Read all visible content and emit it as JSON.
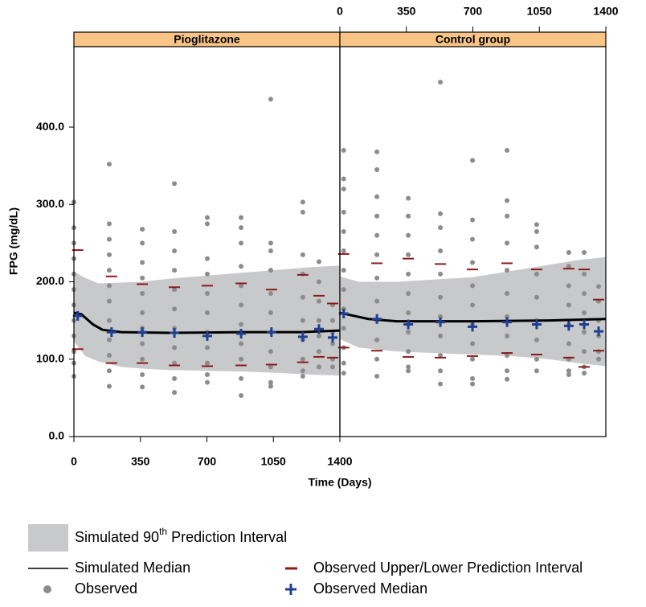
{
  "chart_data": [
    {
      "type": "scatter",
      "title": "Pioglitazone",
      "x_label": "Time (Days)",
      "y_label": "FPG (mg/dL)",
      "xlim": [
        0,
        1400
      ],
      "xticks": [
        0,
        350,
        700,
        1050,
        1400
      ],
      "xtick_side": "bottom",
      "ylim": [
        0,
        504
      ],
      "yticks": [
        {
          "value": 0,
          "label": "0.0"
        },
        {
          "value": 100,
          "label": "100.0"
        },
        {
          "value": 200,
          "label": "200.0"
        },
        {
          "value": 300,
          "label": "300.0"
        },
        {
          "value": 400,
          "label": "400.0"
        }
      ],
      "series": [
        {
          "name": "Simulated 90th Prediction Interval",
          "color": "#c8c9cb",
          "x": [
            0,
            60,
            130,
            250,
            350,
            500,
            700,
            900,
            1100,
            1250,
            1400
          ],
          "upper": [
            213,
            205,
            198,
            199,
            200,
            204,
            208,
            212,
            216,
            219,
            221
          ],
          "lower": [
            123,
            104,
            97,
            90,
            88,
            86,
            85,
            84,
            82,
            80,
            79
          ]
        },
        {
          "name": "Simulated Median",
          "color": "#000000",
          "x": [
            0,
            40,
            100,
            150,
            250,
            500,
            900,
            1200,
            1400
          ],
          "values": [
            160,
            158,
            145,
            138,
            135,
            134,
            135,
            135,
            137
          ]
        },
        {
          "name": "Observed",
          "color": "#8c8c8c",
          "x": [
            0,
            186,
            360,
            529,
            702,
            880,
            1036,
            1205,
            1290,
            1362
          ],
          "values": [
            [
              303,
              270,
              250,
              230,
              210,
              190,
              170,
              150,
              130,
              110,
              95,
              78
            ],
            [
              352,
              275,
              255,
              235,
              215,
              195,
              175,
              150,
              125,
              105,
              85,
              65
            ],
            [
              268,
              250,
              225,
              205,
              185,
              160,
              140,
              120,
              100,
              80,
              64
            ],
            [
              327,
              265,
              240,
              215,
              190,
              165,
              140,
              115,
              95,
              75,
              57
            ],
            [
              283,
              275,
              230,
              210,
              185,
              160,
              135,
              115,
              95,
              80,
              70
            ],
            [
              283,
              270,
              250,
              220,
              195,
              170,
              145,
              120,
              100,
              75,
              53
            ],
            [
              436,
              250,
              240,
              215,
              185,
              160,
              135,
              110,
              90,
              70,
              65
            ],
            [
              303,
              290,
              235,
              210,
              180,
              150,
              125,
              100,
              85,
              78
            ],
            [
              226,
              200,
              175,
              150,
              130,
              110,
              90
            ],
            [
              170,
              150,
              135,
              120,
              100,
              90
            ]
          ]
        },
        {
          "name": "Observed Upper/Lower Prediction Interval",
          "color": "#8b1a1a",
          "x": [
            20,
            198,
            360,
            529,
            702,
            880,
            1040,
            1205,
            1290,
            1362
          ],
          "upper": [
            241,
            207,
            197,
            193,
            195,
            198,
            190,
            209,
            182,
            172
          ],
          "lower": [
            113,
            95,
            95,
            92,
            91,
            92,
            93,
            96,
            103,
            102
          ]
        },
        {
          "name": "Observed Median",
          "color": "#1f3f8f",
          "x": [
            20,
            198,
            360,
            529,
            702,
            880,
            1040,
            1205,
            1290,
            1362
          ],
          "values": [
            156,
            135,
            135,
            134,
            130,
            133,
            135,
            129,
            139,
            128
          ]
        }
      ]
    },
    {
      "type": "scatter",
      "title": "Control group",
      "xlim": [
        0,
        1400
      ],
      "xticks": [
        0,
        350,
        700,
        1050,
        1400
      ],
      "xtick_side": "top",
      "ylim": [
        0,
        504
      ],
      "series": [
        {
          "color": "#c8c9cb",
          "x": [
            0,
            100,
            300,
            500,
            700,
            900,
            1100,
            1250,
            1400
          ],
          "upper": [
            207,
            200,
            200,
            203,
            206,
            214,
            222,
            228,
            232
          ],
          "lower": [
            126,
            115,
            110,
            108,
            106,
            104,
            100,
            95,
            91
          ]
        },
        {
          "color": "#000000",
          "x": [
            0,
            150,
            300,
            700,
            1100,
            1400
          ],
          "values": [
            160,
            152,
            149,
            149,
            150,
            152
          ]
        },
        {
          "color": "#8c8c8c",
          "x": [
            20,
            195,
            360,
            529,
            698,
            880,
            1036,
            1205,
            1286,
            1362
          ],
          "values": [
            [
              370,
              333,
              320,
              290,
              265,
              240,
              215,
              190,
              165,
              140,
              115,
              95,
              82
            ],
            [
              368,
              345,
              310,
              285,
              260,
              235,
              205,
              175,
              150,
              125,
              100,
              78
            ],
            [
              308,
              285,
              260,
              235,
              210,
              185,
              160,
              135,
              110,
              90,
              85
            ],
            [
              458,
              288,
              270,
              240,
              210,
              180,
              155,
              130,
              105,
              85,
              68
            ],
            [
              357,
              280,
              255,
              225,
              195,
              170,
              145,
              120,
              100,
              75,
              68
            ],
            [
              370,
              305,
              285,
              250,
              215,
              185,
              155,
              130,
              105,
              85,
              74
            ],
            [
              274,
              265,
              245,
              210,
              180,
              150,
              125,
              100,
              85
            ],
            [
              238,
              220,
              195,
              170,
              145,
              120,
              100,
              85,
              80
            ],
            [
              238,
              210,
              185,
              160,
              135,
              110,
              90,
              82
            ],
            [
              194,
              175,
              150,
              130,
              110,
              100
            ]
          ]
        },
        {
          "color": "#8b1a1a",
          "x": [
            20,
            195,
            360,
            529,
            698,
            880,
            1036,
            1205,
            1286,
            1362
          ],
          "upper": [
            236,
            224,
            230,
            223,
            216,
            224,
            216,
            217,
            216,
            177
          ],
          "lower": [
            115,
            111,
            103,
            102,
            104,
            108,
            106,
            102,
            90,
            111
          ]
        },
        {
          "color": "#1f3f8f",
          "x": [
            20,
            195,
            360,
            529,
            698,
            880,
            1036,
            1205,
            1286,
            1362
          ],
          "values": [
            159,
            152,
            145,
            148,
            142,
            148,
            145,
            143,
            145,
            136
          ]
        }
      ]
    }
  ]
}
